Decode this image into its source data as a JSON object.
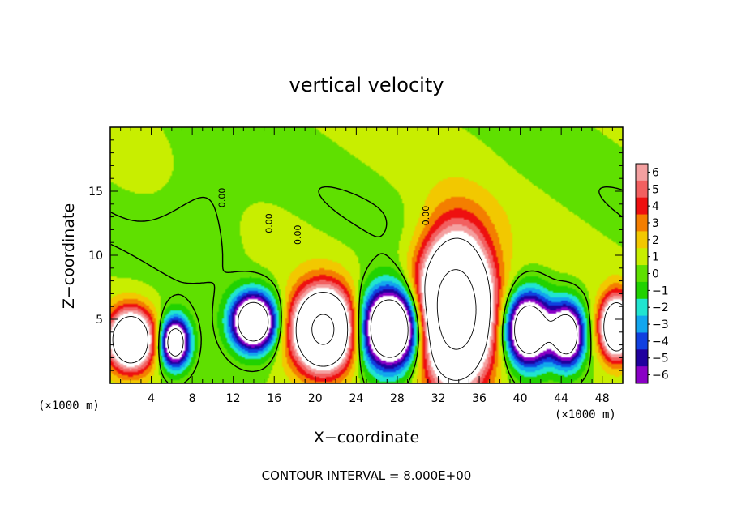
{
  "chart_data": {
    "type": "heatmap",
    "title": "vertical velocity",
    "xlabel": "X−coordinate",
    "ylabel": "Z−coordinate",
    "x_unit_note": "(×1000 m)",
    "y_unit_note": "(×1000 m)",
    "xlim": [
      0,
      50
    ],
    "ylim": [
      0,
      20
    ],
    "x_ticks": [
      4,
      8,
      12,
      16,
      20,
      24,
      28,
      32,
      36,
      40,
      44,
      48
    ],
    "y_ticks": [
      5,
      10,
      15
    ],
    "colorbar": {
      "ticks": [
        6,
        5,
        4,
        3,
        2,
        1,
        0,
        -1,
        -2,
        -3,
        -4,
        -5,
        -6
      ],
      "tick_labels": [
        "6",
        "5",
        "4",
        "3",
        "2",
        "1",
        "0",
        "−1",
        "−2",
        "−3",
        "−4",
        "−5",
        "−6"
      ],
      "colors": [
        "#f4a0a0",
        "#f26060",
        "#ee1010",
        "#f47e00",
        "#f2c800",
        "#c8ee00",
        "#5fe000",
        "#21d200",
        "#20e4d0",
        "#12a6ee",
        "#1040e0",
        "#20009e",
        "#8a00c6"
      ],
      "clipped_color": "#ffffff"
    },
    "contour_interval_label": "CONTOUR INTERVAL = 8.000E+00",
    "contour_labels": [
      "0.00",
      "0.00",
      "0.00",
      "0.00"
    ],
    "background_value": 0.5,
    "cells": [
      {
        "xc": 2.0,
        "zc": 3.4,
        "rx": 2.8,
        "rz": 2.9,
        "peak": 14
      },
      {
        "xc": 6.3,
        "zc": 3.2,
        "rx": 1.8,
        "rz": 2.4,
        "peak": -12
      },
      {
        "xc": 14.0,
        "zc": 4.8,
        "rx": 2.7,
        "rz": 2.7,
        "peak": -14
      },
      {
        "xc": 20.8,
        "zc": 4.2,
        "rx": 3.7,
        "rz": 3.9,
        "peak": 18
      },
      {
        "xc": 27.4,
        "zc": 4.3,
        "rx": 3.7,
        "rz": 3.8,
        "peak": -16
      },
      {
        "xc": 33.7,
        "zc": 5.8,
        "rx": 4.3,
        "rz": 6.8,
        "peak": 22
      },
      {
        "xc": 40.8,
        "zc": 4.2,
        "rx": 2.8,
        "rz": 3.4,
        "peak": -14
      },
      {
        "xc": 44.6,
        "zc": 3.8,
        "rx": 2.0,
        "rz": 3.0,
        "peak": -12
      },
      {
        "xc": 49.4,
        "zc": 4.4,
        "rx": 2.0,
        "rz": 3.0,
        "peak": 14
      }
    ]
  }
}
